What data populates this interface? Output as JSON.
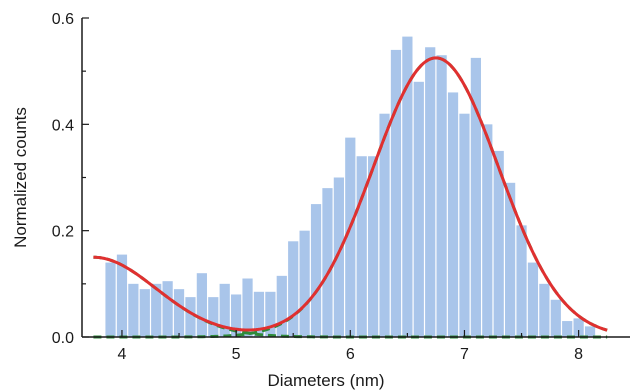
{
  "chart_data": {
    "type": "bar",
    "title": "",
    "xlabel": "Diameters (nm)",
    "ylabel": "Normalized counts",
    "xlim": [
      3.65,
      8.45
    ],
    "ylim": [
      0,
      0.6
    ],
    "xticks": [
      4,
      5,
      6,
      7,
      8
    ],
    "yticks": [
      0.0,
      0.2,
      0.4,
      0.6
    ],
    "ytick_labels": [
      "0.0",
      "0.2",
      "0.4",
      "0.6"
    ],
    "grid": false,
    "colors": {
      "bars": "#a9c5ea",
      "fit": "#e03030",
      "components": "#2e8b3a",
      "axis": "#1a1a1a"
    },
    "histogram": {
      "bin_width": 0.1,
      "bin_centers": [
        3.9,
        4.0,
        4.1,
        4.2,
        4.3,
        4.4,
        4.5,
        4.6,
        4.7,
        4.8,
        4.9,
        5.0,
        5.1,
        5.2,
        5.3,
        5.4,
        5.5,
        5.6,
        5.7,
        5.8,
        5.9,
        6.0,
        6.1,
        6.2,
        6.3,
        6.4,
        6.5,
        6.6,
        6.7,
        6.8,
        6.9,
        7.0,
        7.1,
        7.2,
        7.3,
        7.4,
        7.5,
        7.6,
        7.7,
        7.8,
        7.9,
        8.0,
        8.1
      ],
      "values": [
        0.14,
        0.155,
        0.1,
        0.09,
        0.1,
        0.105,
        0.09,
        0.075,
        0.12,
        0.075,
        0.1,
        0.08,
        0.11,
        0.085,
        0.085,
        0.115,
        0.18,
        0.2,
        0.25,
        0.28,
        0.3,
        0.375,
        0.34,
        0.34,
        0.42,
        0.54,
        0.565,
        0.48,
        0.545,
        0.53,
        0.46,
        0.42,
        0.525,
        0.4,
        0.35,
        0.29,
        0.21,
        0.14,
        0.1,
        0.07,
        0.03,
        0.035,
        0.02
      ]
    },
    "fit_components": [
      {
        "amplitude": 0.525,
        "center": 6.75,
        "sigma": 0.55
      },
      {
        "amplitude": 0.15,
        "center": 3.75,
        "sigma": 0.55
      }
    ],
    "fit_range": [
      3.75,
      8.25
    ]
  }
}
